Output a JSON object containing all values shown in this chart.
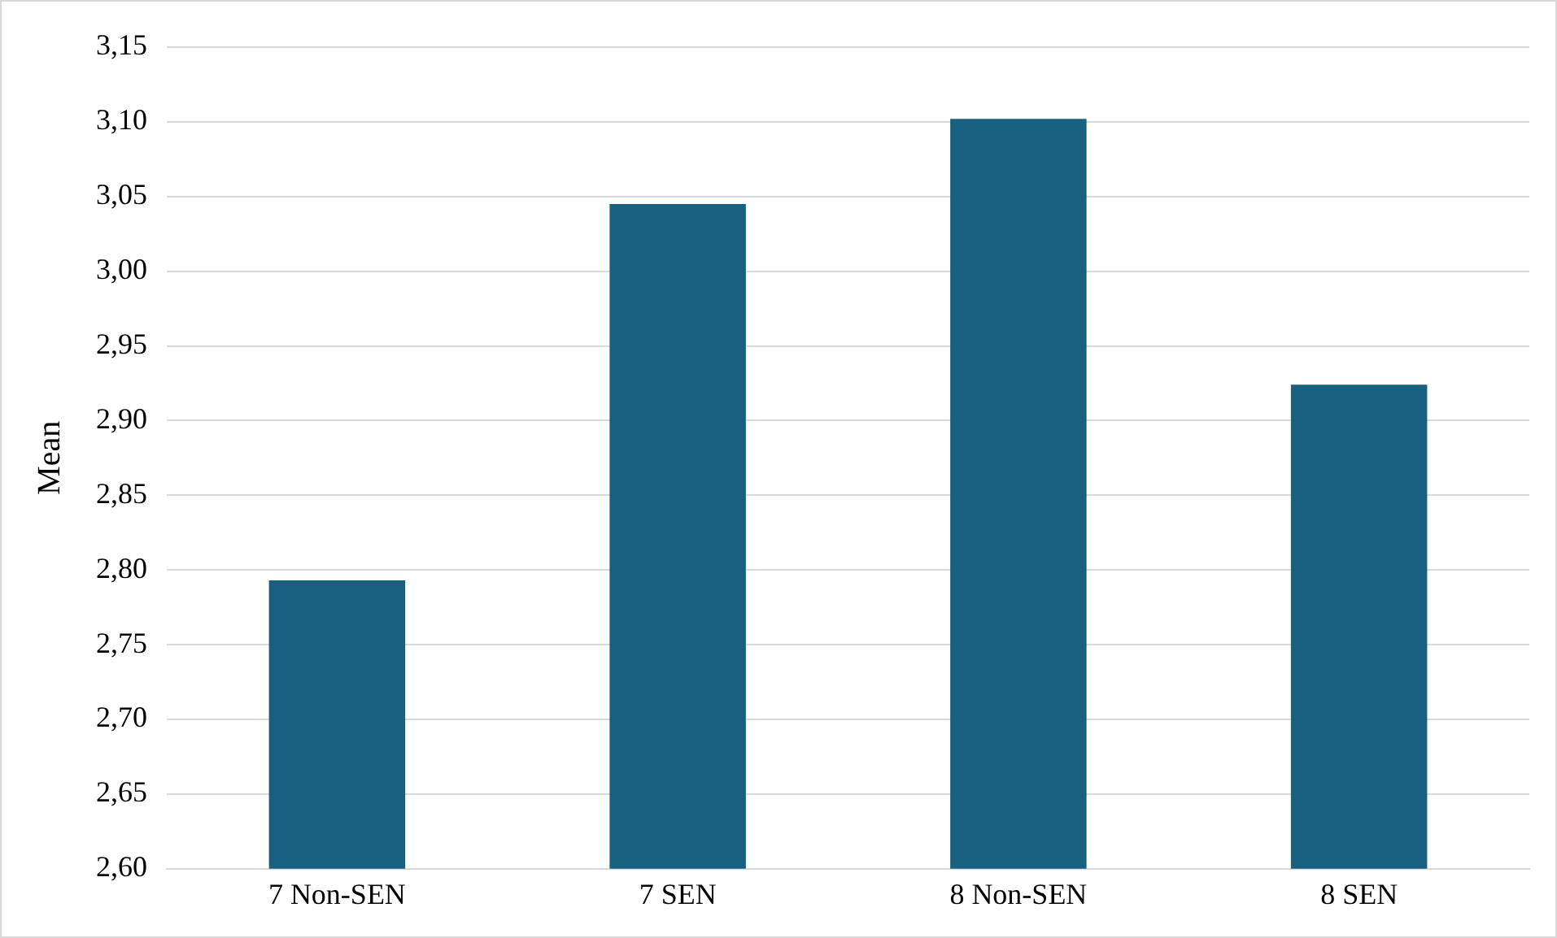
{
  "chart_data": {
    "type": "bar",
    "ylabel": "Mean",
    "categories": [
      "7 Non-SEN",
      "7 SEN",
      "8 Non-SEN",
      "8 SEN"
    ],
    "values": [
      2.793,
      3.045,
      3.102,
      2.924
    ],
    "color": "#17607f",
    "ylim": [
      2.6,
      3.15
    ],
    "yticks": [
      {
        "value": 2.6,
        "label": "2,60"
      },
      {
        "value": 2.65,
        "label": "2,65"
      },
      {
        "value": 2.7,
        "label": "2,70"
      },
      {
        "value": 2.75,
        "label": "2,75"
      },
      {
        "value": 2.8,
        "label": "2,80"
      },
      {
        "value": 2.85,
        "label": "2,85"
      },
      {
        "value": 2.9,
        "label": "2,90"
      },
      {
        "value": 2.95,
        "label": "2,95"
      },
      {
        "value": 3.0,
        "label": "3,00"
      },
      {
        "value": 3.05,
        "label": "3,05"
      },
      {
        "value": 3.1,
        "label": "3,10"
      },
      {
        "value": 3.15,
        "label": "3,15"
      }
    ],
    "grid": "y",
    "legend": false
  }
}
